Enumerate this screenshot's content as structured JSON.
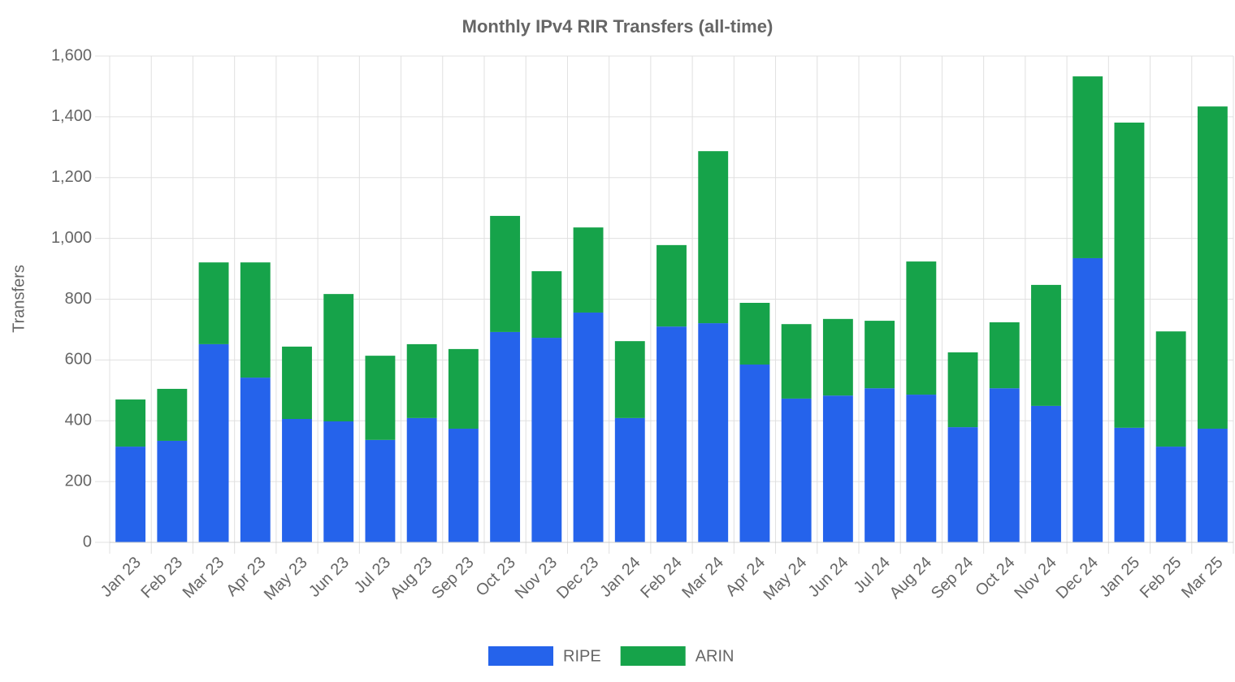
{
  "chart_data": {
    "type": "stacked_bar",
    "title": "Monthly IPv4 RIR Transfers (all-time)",
    "y_label": "Transfers",
    "categories": [
      "Jan 23",
      "Feb 23",
      "Mar 23",
      "Apr 23",
      "May 23",
      "Jun 23",
      "Jul 23",
      "Aug 23",
      "Sep 23",
      "Oct 23",
      "Nov 23",
      "Dec 23",
      "Jan 24",
      "Feb 24",
      "Mar 24",
      "Apr 24",
      "May 24",
      "Jun 24",
      "Jul 24",
      "Aug 24",
      "Sep 24",
      "Oct 24",
      "Nov 24",
      "Dec 24",
      "Jan 25",
      "Feb 25",
      "Mar 25"
    ],
    "series": [
      {
        "name": "RIPE",
        "color": "#2563eb",
        "values": [
          315,
          334,
          652,
          542,
          406,
          398,
          337,
          409,
          374,
          692,
          673,
          756,
          409,
          710,
          721,
          585,
          473,
          483,
          507,
          486,
          379,
          507,
          449,
          935,
          377,
          315,
          374
        ]
      },
      {
        "name": "ARIN",
        "color": "#16a34a",
        "values": [
          155,
          171,
          269,
          379,
          238,
          419,
          277,
          243,
          262,
          382,
          219,
          280,
          253,
          268,
          566,
          203,
          245,
          252,
          222,
          438,
          246,
          217,
          398,
          598,
          1004,
          379,
          1060
        ]
      }
    ],
    "ylim": [
      0,
      1600
    ],
    "yticks": [
      0,
      200,
      400,
      600,
      800,
      {
        "value": 1000,
        "label": "1,000"
      },
      {
        "value": 1200,
        "label": "1,200"
      },
      {
        "value": 1400,
        "label": "1,400"
      },
      {
        "value": 1600,
        "label": "1,600"
      }
    ],
    "grid": true,
    "legend": "bottom"
  }
}
